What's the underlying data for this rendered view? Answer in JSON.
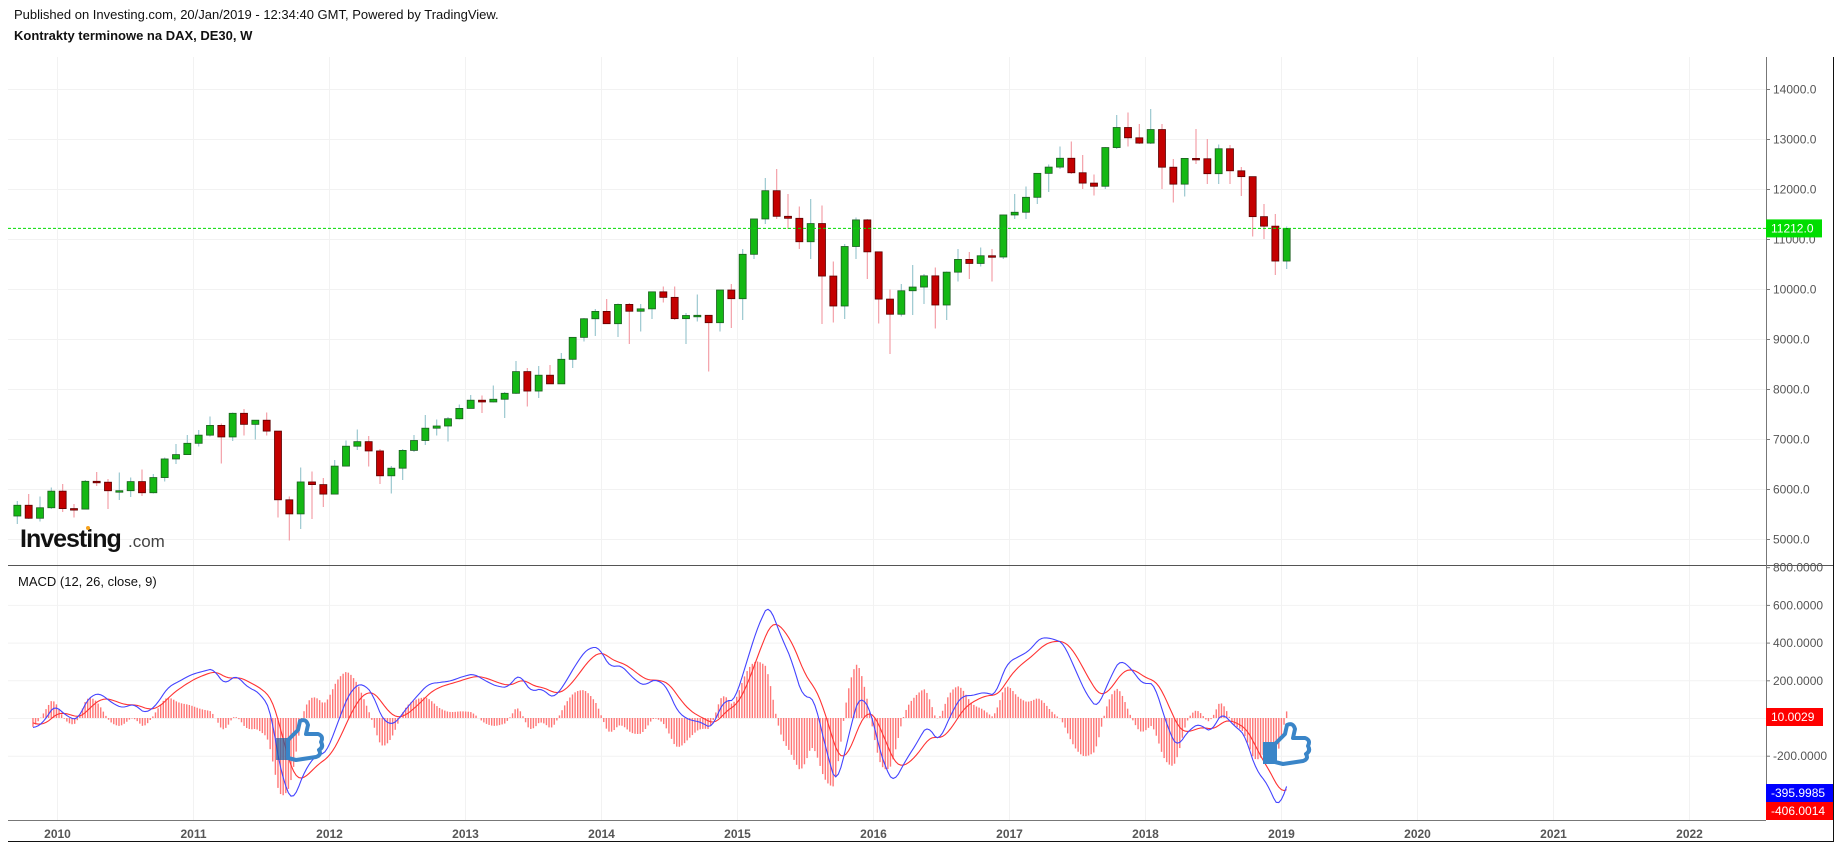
{
  "header": {
    "published": "Published on Investing.com, 20/Jan/2019 - 12:34:40 GMT, Powered by TradingView.",
    "title": "Kontrakty terminowe na DAX, DE30, W"
  },
  "logo": {
    "main": "Investing",
    "suffix": ".com"
  },
  "colors": {
    "up": "#14b814",
    "down": "#c40000",
    "macd": "#4444ff",
    "signal": "#ff3333",
    "hist": "#ff7777",
    "last_price": "#00dd00"
  },
  "chart_data": [
    {
      "type": "candlestick",
      "title": "Kontrakty terminowe na DAX, DE30, W",
      "ylim": [
        4800,
        14600
      ],
      "y_ticks": [
        "14000.0",
        "13000.0",
        "12000.0",
        "11000.0",
        "10000.0",
        "9000.0",
        "8000.0",
        "7000.0",
        "6000.0",
        "5000.0"
      ],
      "x_ticks": [
        "2010",
        "2011",
        "2012",
        "2013",
        "2014",
        "2015",
        "2016",
        "2017",
        "2018",
        "2019",
        "2020",
        "2021",
        "2022"
      ],
      "last_price": 11212.0,
      "last_price_label": "11212.0",
      "start_month": "2009-09",
      "ohlc": [
        [
          5460,
          5760,
          5300,
          5675
        ],
        [
          5675,
          5900,
          5400,
          5415
        ],
        [
          5415,
          5850,
          5350,
          5625
        ],
        [
          5625,
          6030,
          5600,
          5957
        ],
        [
          5957,
          6100,
          5540,
          5608
        ],
        [
          5608,
          5700,
          5430,
          5598
        ],
        [
          5598,
          6180,
          5590,
          6154
        ],
        [
          6154,
          6340,
          6060,
          6136
        ],
        [
          6136,
          6200,
          5600,
          5965
        ],
        [
          5965,
          6330,
          5780,
          5966
        ],
        [
          5966,
          6230,
          5840,
          6148
        ],
        [
          6148,
          6390,
          5860,
          5925
        ],
        [
          5925,
          6300,
          5910,
          6229
        ],
        [
          6229,
          6630,
          6150,
          6601
        ],
        [
          6601,
          6900,
          6500,
          6688
        ],
        [
          6688,
          7080,
          6700,
          6914
        ],
        [
          6914,
          7180,
          6850,
          7077
        ],
        [
          7077,
          7450,
          7050,
          7272
        ],
        [
          7272,
          7310,
          6510,
          7041
        ],
        [
          7041,
          7530,
          6960,
          7514
        ],
        [
          7514,
          7600,
          7070,
          7293
        ],
        [
          7293,
          7380,
          6990,
          7376
        ],
        [
          7376,
          7530,
          7070,
          7158
        ],
        [
          7158,
          7160,
          5430,
          5784
        ],
        [
          5784,
          5850,
          4970,
          5502
        ],
        [
          5502,
          6430,
          5200,
          6141
        ],
        [
          6141,
          6350,
          5400,
          6088
        ],
        [
          6088,
          6220,
          5640,
          5898
        ],
        [
          5898,
          6580,
          5900,
          6458
        ],
        [
          6458,
          6970,
          6450,
          6856
        ],
        [
          6856,
          7190,
          6780,
          6947
        ],
        [
          6947,
          7060,
          6450,
          6761
        ],
        [
          6761,
          6800,
          6100,
          6264
        ],
        [
          6264,
          6460,
          5910,
          6416
        ],
        [
          6416,
          6800,
          6180,
          6772
        ],
        [
          6772,
          7080,
          6740,
          6970
        ],
        [
          6970,
          7480,
          6880,
          7216
        ],
        [
          7216,
          7390,
          7070,
          7260
        ],
        [
          7260,
          7440,
          6950,
          7405
        ],
        [
          7405,
          7690,
          7390,
          7612
        ],
        [
          7612,
          7880,
          7620,
          7776
        ],
        [
          7776,
          7870,
          7520,
          7741
        ],
        [
          7741,
          8070,
          7730,
          7795
        ],
        [
          7795,
          7940,
          7420,
          7914
        ],
        [
          7914,
          8560,
          7900,
          8348
        ],
        [
          8348,
          8420,
          7650,
          7959
        ],
        [
          7959,
          8460,
          7820,
          8276
        ],
        [
          8276,
          8480,
          8100,
          8103
        ],
        [
          8103,
          8720,
          8100,
          8594
        ],
        [
          8594,
          9040,
          8420,
          9033
        ],
        [
          9033,
          9420,
          8950,
          9405
        ],
        [
          9405,
          9600,
          9060,
          9552
        ],
        [
          9552,
          9800,
          9300,
          9306
        ],
        [
          9306,
          9710,
          9040,
          9692
        ],
        [
          9692,
          9720,
          8900,
          9555
        ],
        [
          9555,
          9700,
          9150,
          9603
        ],
        [
          9603,
          9950,
          9400,
          9943
        ],
        [
          9943,
          10050,
          9730,
          9833
        ],
        [
          9833,
          10050,
          9380,
          9407
        ],
        [
          9407,
          9520,
          8900,
          9470
        ],
        [
          9470,
          9890,
          9350,
          9474
        ],
        [
          9474,
          9480,
          8350,
          9326
        ],
        [
          9326,
          9980,
          9150,
          9980
        ],
        [
          9980,
          10100,
          9220,
          9806
        ],
        [
          9806,
          10800,
          9380,
          10694
        ],
        [
          10694,
          11400,
          10600,
          11401
        ],
        [
          11401,
          12220,
          11300,
          11966
        ],
        [
          11966,
          12400,
          11400,
          11454
        ],
        [
          11454,
          11900,
          11200,
          11414
        ],
        [
          11414,
          11650,
          10800,
          10945
        ],
        [
          10945,
          11800,
          10600,
          11309
        ],
        [
          11309,
          11670,
          9300,
          10259
        ],
        [
          10259,
          10550,
          9330,
          9660
        ],
        [
          9660,
          10900,
          9400,
          10850
        ],
        [
          10850,
          11430,
          10600,
          11382
        ],
        [
          11382,
          11400,
          10200,
          10743
        ],
        [
          10743,
          10750,
          9310,
          9798
        ],
        [
          9798,
          9990,
          8700,
          9495
        ],
        [
          9495,
          10100,
          9450,
          9965
        ],
        [
          9965,
          10480,
          9480,
          10039
        ],
        [
          10039,
          10300,
          9700,
          10263
        ],
        [
          10263,
          10430,
          9210,
          9680
        ],
        [
          9680,
          10350,
          9380,
          10337
        ],
        [
          10337,
          10800,
          10150,
          10592
        ],
        [
          10592,
          10740,
          10200,
          10511
        ],
        [
          10511,
          10830,
          10450,
          10665
        ],
        [
          10665,
          10800,
          10150,
          10640
        ],
        [
          10640,
          11490,
          10600,
          11481
        ],
        [
          11481,
          11900,
          11400,
          11535
        ],
        [
          11535,
          12050,
          11400,
          11834
        ],
        [
          11834,
          12320,
          11700,
          12313
        ],
        [
          12313,
          12490,
          11940,
          12438
        ],
        [
          12438,
          12850,
          12400,
          12615
        ],
        [
          12615,
          12950,
          12300,
          12325
        ],
        [
          12325,
          12680,
          12000,
          12118
        ],
        [
          12118,
          12290,
          11870,
          12055
        ],
        [
          12055,
          12840,
          12000,
          12829
        ],
        [
          12829,
          13480,
          12800,
          13230
        ],
        [
          13230,
          13530,
          12850,
          13024
        ],
        [
          13024,
          13300,
          12900,
          12918
        ],
        [
          12918,
          13600,
          12900,
          13189
        ],
        [
          13189,
          13300,
          12000,
          12436
        ],
        [
          12436,
          12600,
          11730,
          12097
        ],
        [
          12097,
          12620,
          11850,
          12612
        ],
        [
          12612,
          13200,
          12500,
          12605
        ],
        [
          12605,
          13000,
          12100,
          12306
        ],
        [
          12306,
          12890,
          12100,
          12805
        ],
        [
          12805,
          12880,
          12100,
          12364
        ],
        [
          12364,
          12440,
          11860,
          12247
        ],
        [
          12247,
          12250,
          11050,
          11447
        ],
        [
          11447,
          11700,
          11000,
          11257
        ],
        [
          11257,
          11500,
          10280,
          10559
        ],
        [
          10559,
          11250,
          10400,
          11212
        ]
      ]
    },
    {
      "type": "line",
      "title": "MACD (12, 26, close, 9)",
      "params": {
        "fast": 12,
        "slow": 26,
        "source": "close",
        "signal": 9
      },
      "ylim": [
        -550,
        850
      ],
      "y_ticks": [
        "800.0000",
        "600.0000",
        "400.0000",
        "200.0000",
        "-200.0000"
      ],
      "series": [
        {
          "name": "histogram",
          "last_label": "10.0029"
        },
        {
          "name": "macd",
          "last_label": "-395.9985"
        },
        {
          "name": "signal",
          "last_label": "-406.0014"
        }
      ]
    }
  ]
}
